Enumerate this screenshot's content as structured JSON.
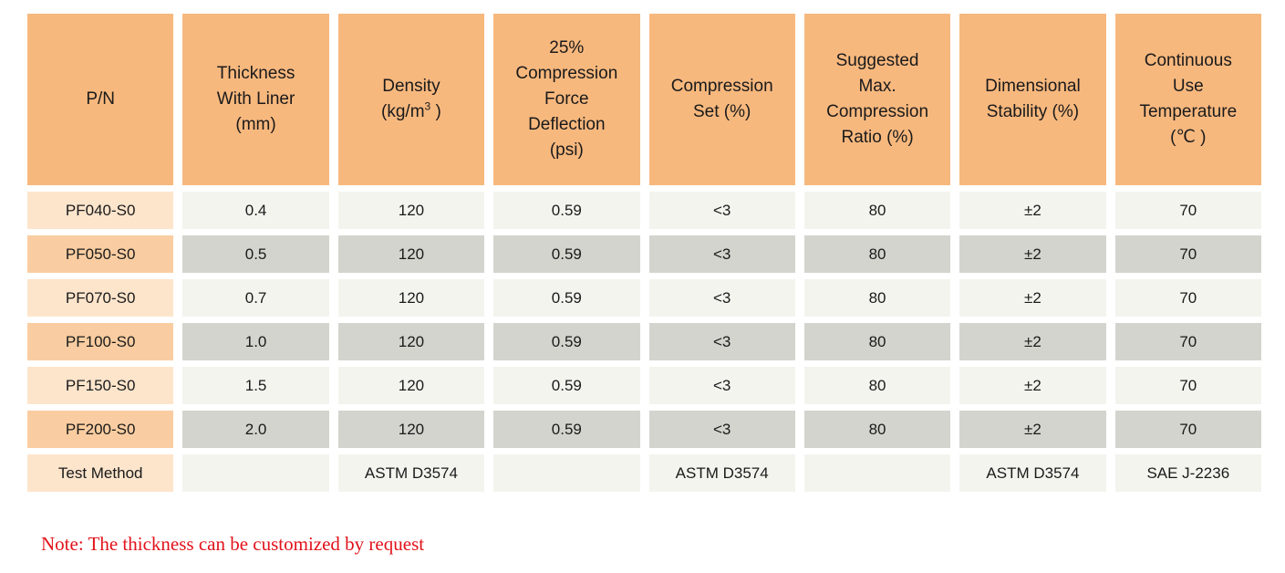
{
  "table": {
    "headers": [
      {
        "lines": [
          "P/N"
        ]
      },
      {
        "lines": [
          "Thickness",
          "With Liner",
          "(mm)"
        ]
      },
      {
        "lines": [
          "Density"
        ],
        "unit": {
          "prefix": "(kg/m",
          "sup": "3",
          "suffix": " )"
        }
      },
      {
        "lines": [
          "25%",
          "Compression",
          "Force",
          "Deflection",
          "(psi)"
        ]
      },
      {
        "lines": [
          "Compression",
          "Set (%)"
        ]
      },
      {
        "lines": [
          "Suggested",
          "Max.",
          "Compression",
          "Ratio (%)"
        ]
      },
      {
        "lines": [
          "Dimensional",
          "Stability (%)"
        ]
      },
      {
        "lines": [
          "Continuous",
          "Use",
          "Temperature",
          "(℃ )"
        ]
      }
    ],
    "rows": [
      {
        "shade": "light",
        "cells": [
          "PF040-S0",
          "0.4",
          "120",
          "0.59",
          "<3",
          "80",
          "±2",
          "70"
        ]
      },
      {
        "shade": "dark",
        "cells": [
          "PF050-S0",
          "0.5",
          "120",
          "0.59",
          "<3",
          "80",
          "±2",
          "70"
        ]
      },
      {
        "shade": "light",
        "cells": [
          "PF070-S0",
          "0.7",
          "120",
          "0.59",
          "<3",
          "80",
          "±2",
          "70"
        ]
      },
      {
        "shade": "dark",
        "cells": [
          "PF100-S0",
          "1.0",
          "120",
          "0.59",
          "<3",
          "80",
          "±2",
          "70"
        ]
      },
      {
        "shade": "light",
        "cells": [
          "PF150-S0",
          "1.5",
          "120",
          "0.59",
          "<3",
          "80",
          "±2",
          "70"
        ]
      },
      {
        "shade": "dark",
        "cells": [
          "PF200-S0",
          "2.0",
          "120",
          "0.59",
          "<3",
          "80",
          "±2",
          "70"
        ]
      },
      {
        "shade": "light",
        "cells": [
          "Test Method",
          "",
          "ASTM D3574",
          "",
          "ASTM D3574",
          "",
          "ASTM D3574",
          "SAE J-2236"
        ]
      }
    ]
  },
  "note": {
    "text": "Note: The thickness can be customized by request"
  },
  "colors": {
    "header_bg": "#f7b87e",
    "pn_col_light": "#fde5cc",
    "pn_col_dark": "#f9cda1",
    "cell_light": "#f4f4ef",
    "cell_dark": "#d3d4cd",
    "note_red": "#e2121b",
    "text": "#1a1a1a"
  }
}
